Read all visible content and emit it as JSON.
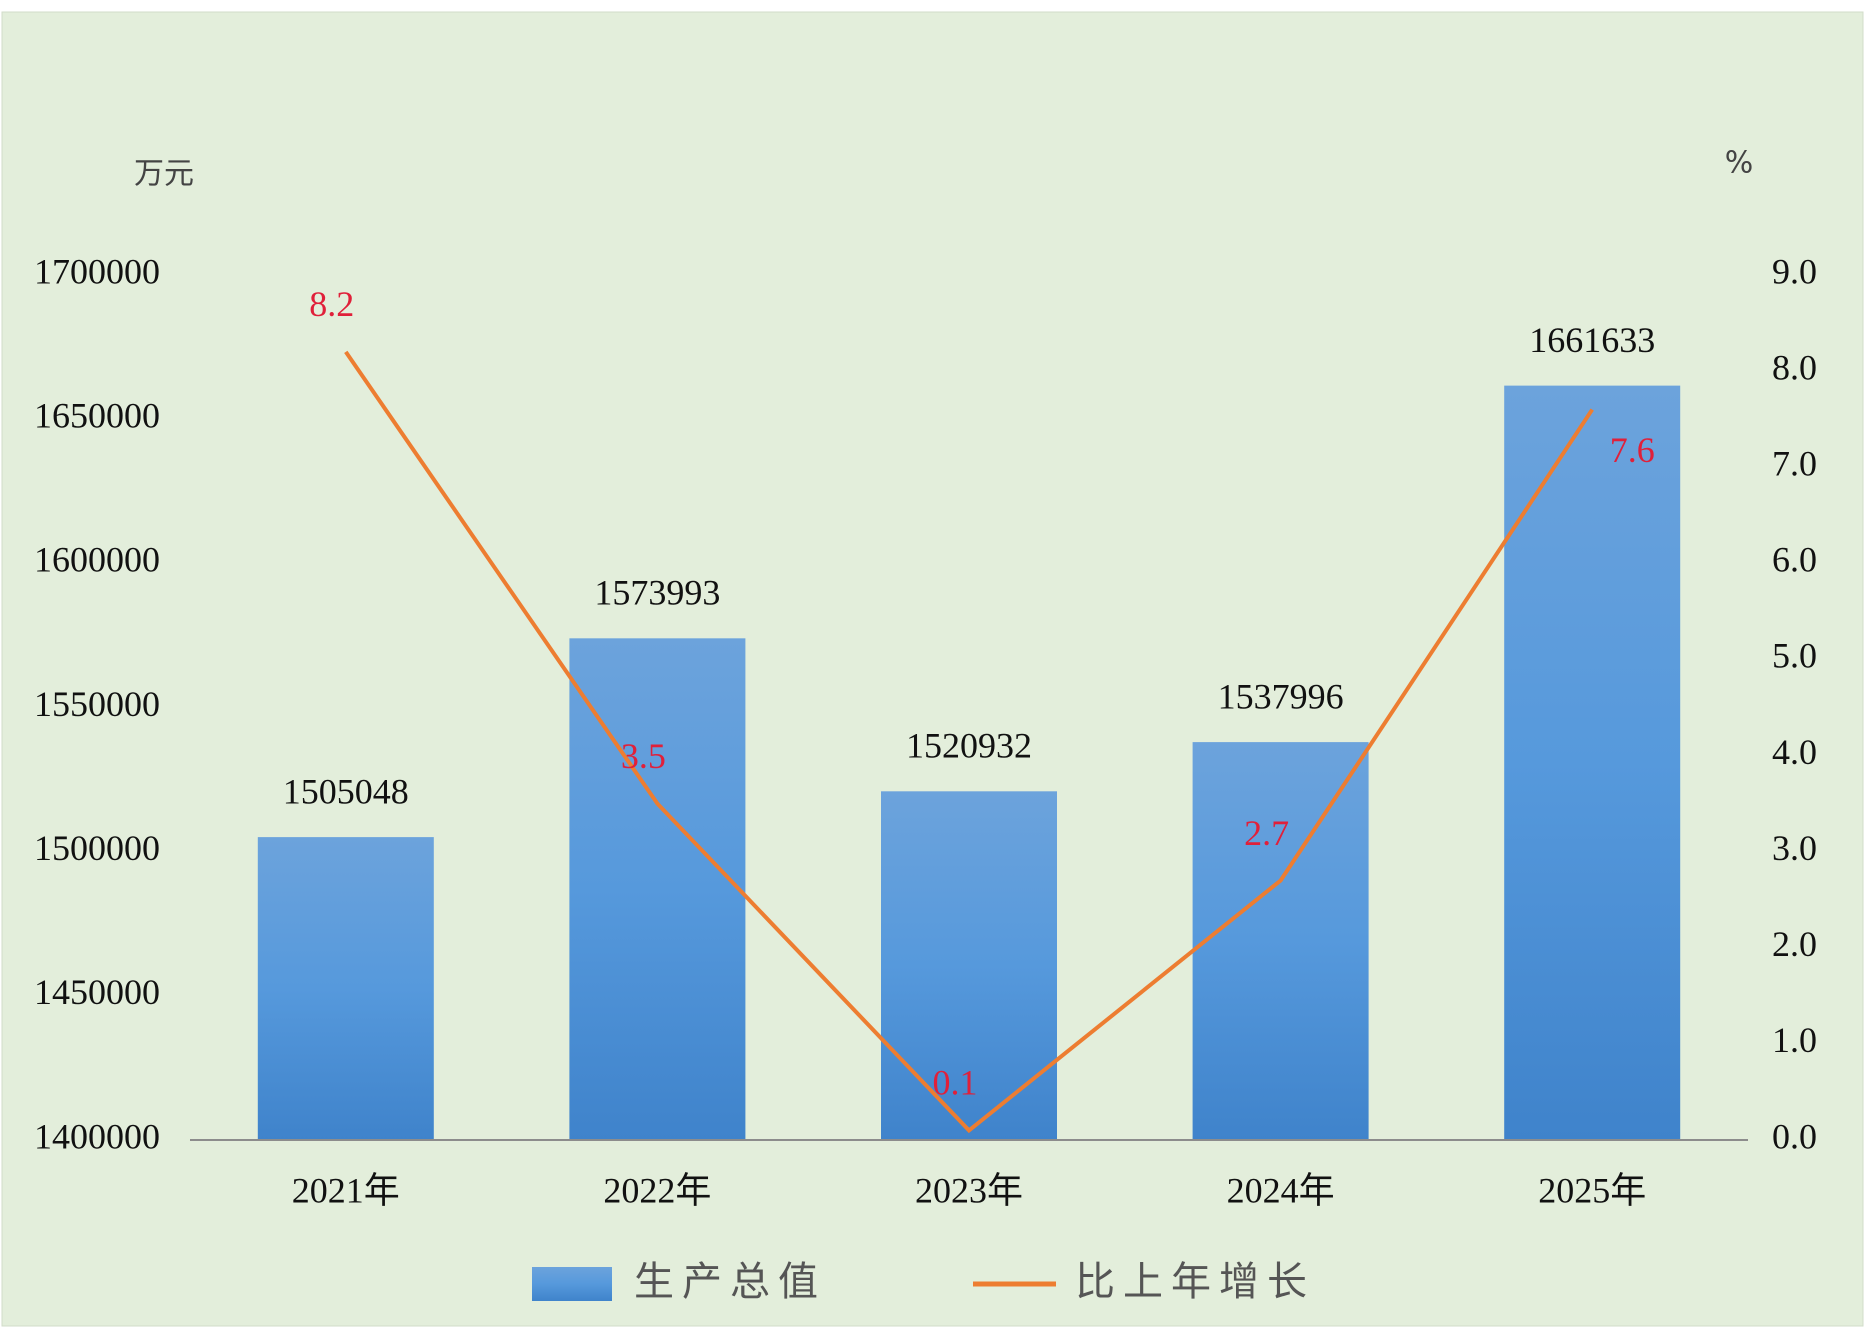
{
  "chart_data": {
    "type": "bar",
    "y_unit": "万元",
    "y2_unit": "%",
    "categories": [
      "2021年",
      "2022年",
      "2023年",
      "2024年",
      "2025年"
    ],
    "series": [
      {
        "name": "生产总值",
        "type": "bar",
        "color": "#4a8ad3",
        "values": [
          1505048,
          1573993,
          1520932,
          1537996,
          1661633
        ]
      },
      {
        "name": "比上年增长",
        "type": "line",
        "axis": "y2",
        "color": "#ed7d31",
        "label_color": "#e0203a",
        "values": [
          8.2,
          3.5,
          0.1,
          2.7,
          7.6
        ]
      }
    ],
    "ylim": [
      1400000,
      1700000
    ],
    "yticks": [
      1400000,
      1450000,
      1500000,
      1550000,
      1600000,
      1650000,
      1700000
    ],
    "y2lim": [
      0,
      9
    ],
    "y2ticks": [
      {
        "value": 0,
        "label": "0.0"
      },
      {
        "value": 1,
        "label": "1.0"
      },
      {
        "value": 2,
        "label": "2.0"
      },
      {
        "value": 3,
        "label": "3.0"
      },
      {
        "value": 4,
        "label": "4.0"
      },
      {
        "value": 5,
        "label": "5.0"
      },
      {
        "value": 6,
        "label": "6.0"
      },
      {
        "value": 7,
        "label": "7.0"
      },
      {
        "value": 8,
        "label": "8.0"
      },
      {
        "value": 9,
        "label": "9.0"
      }
    ],
    "legend": "bottom"
  }
}
